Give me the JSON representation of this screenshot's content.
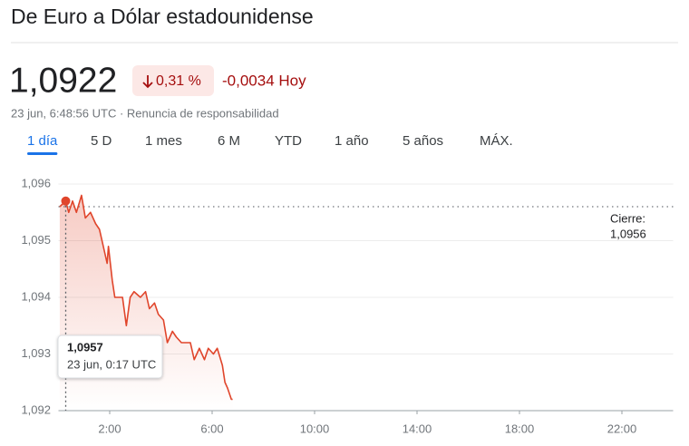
{
  "header": {
    "title": "De Euro a Dólar estadounidense",
    "price": "1,0922",
    "change_pct": "0,31 %",
    "change_abs": "-0,0034 Hoy",
    "timestamp": "23 jun, 6:48:56 UTC · Renuncia de responsabilidad"
  },
  "tabs": [
    "1 día",
    "5 D",
    "1 mes",
    "6 M",
    "YTD",
    "1 año",
    "5 años",
    "MÁX."
  ],
  "chart_data": {
    "type": "line",
    "color": "#e0452b",
    "x": [
      0.05,
      0.283,
      0.4,
      0.55,
      0.7,
      0.9,
      1.05,
      1.25,
      1.45,
      1.6,
      1.8,
      1.9,
      1.95,
      2.1,
      2.2,
      2.3,
      2.5,
      2.65,
      2.8,
      2.95,
      3.2,
      3.4,
      3.55,
      3.75,
      3.9,
      4.1,
      4.25,
      4.45,
      4.6,
      4.8,
      4.95,
      5.15,
      5.3,
      5.5,
      5.7,
      5.85,
      6.05,
      6.2,
      6.4,
      6.5,
      6.6,
      6.75,
      6.8
    ],
    "values": [
      1.0956,
      1.0957,
      1.0955,
      1.0957,
      1.0955,
      1.0958,
      1.0954,
      1.0955,
      1.0953,
      1.0952,
      1.0948,
      1.0946,
      1.0949,
      1.0943,
      1.094,
      1.094,
      1.094,
      1.0935,
      1.094,
      1.0941,
      1.094,
      1.0941,
      1.0938,
      1.0939,
      1.0937,
      1.0936,
      1.0932,
      1.0934,
      1.0933,
      1.0932,
      1.0932,
      1.0932,
      1.0929,
      1.0931,
      1.0929,
      1.0931,
      1.093,
      1.0931,
      1.0928,
      1.0925,
      1.0924,
      1.0922,
      1.0922
    ],
    "xlim": [
      0,
      24
    ],
    "xticks": [
      {
        "value": 2,
        "label": "2:00"
      },
      {
        "value": 6,
        "label": "6:00"
      },
      {
        "value": 10,
        "label": "10:00"
      },
      {
        "value": 14,
        "label": "14:00"
      },
      {
        "value": 18,
        "label": "18:00"
      },
      {
        "value": 22,
        "label": "22:00"
      }
    ],
    "ylim": [
      1.092,
      1.096
    ],
    "yticks": [
      {
        "value": 1.092,
        "label": "1,092"
      },
      {
        "value": 1.093,
        "label": "1,093"
      },
      {
        "value": 1.094,
        "label": "1,094"
      },
      {
        "value": 1.095,
        "label": "1,095"
      },
      {
        "value": 1.096,
        "label": "1,096"
      }
    ],
    "grid": true,
    "reference_line": {
      "label": "Cierre:",
      "value": 1.0956,
      "value_label": "1,0956"
    },
    "tooltip": {
      "x": 0.283,
      "value": 1.0957,
      "value_label": "1,0957",
      "x_label": "23 jun, 0:17 UTC"
    }
  }
}
